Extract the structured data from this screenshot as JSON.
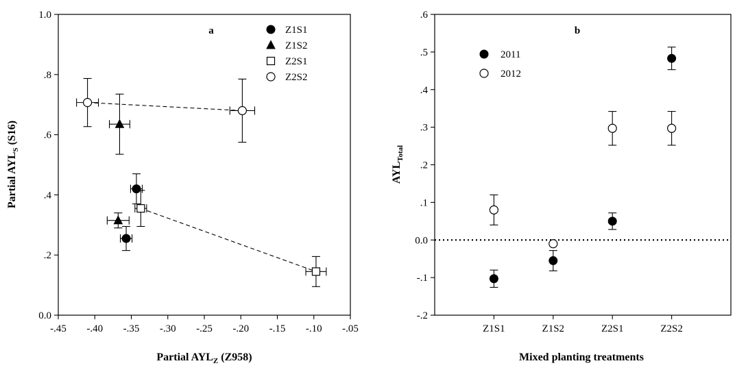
{
  "chart_data": [
    {
      "type": "scatter",
      "panel_label": "a",
      "xlabel": "Partial AYL",
      "xlabel_sub": "Z",
      "xlabel_suffix": " (Z958)",
      "ylabel": "Partial AYL",
      "ylabel_sub": "S",
      "ylabel_suffix": " (S16)",
      "xlim": [
        -0.45,
        -0.05
      ],
      "ylim": [
        0.0,
        1.0
      ],
      "x_ticks": [
        -0.45,
        -0.4,
        -0.35,
        -0.3,
        -0.25,
        -0.2,
        -0.15,
        -0.1,
        -0.05
      ],
      "x_tick_labels": [
        "-.45",
        "-.40",
        "-.35",
        "-.30",
        "-.25",
        "-.20",
        "-.15",
        "-.10",
        "-.05"
      ],
      "y_ticks": [
        0.0,
        0.2,
        0.4,
        0.6,
        0.8,
        1.0
      ],
      "y_tick_labels": [
        "0.0",
        ".2",
        ".4",
        ".6",
        ".8",
        "1.0"
      ],
      "grid": false,
      "legend_position": "top-right",
      "series": [
        {
          "name": "Z1S1",
          "marker": "filled-circle",
          "points": [
            {
              "x": -0.343,
              "y": 0.42,
              "xerr": 0.008,
              "yerr": 0.05
            },
            {
              "x": -0.357,
              "y": 0.255,
              "xerr": 0.008,
              "yerr": 0.04
            }
          ]
        },
        {
          "name": "Z1S2",
          "marker": "filled-triangle",
          "points": [
            {
              "x": -0.366,
              "y": 0.635,
              "xerr": 0.014,
              "yerr": 0.1
            },
            {
              "x": -0.368,
              "y": 0.315,
              "xerr": 0.015,
              "yerr": 0.025
            }
          ]
        },
        {
          "name": "Z2S1",
          "marker": "open-square",
          "points": [
            {
              "x": -0.337,
              "y": 0.355,
              "xerr": 0.008,
              "yerr": 0.06
            },
            {
              "x": -0.097,
              "y": 0.145,
              "xerr": 0.014,
              "yerr": 0.05
            }
          ]
        },
        {
          "name": "Z2S2",
          "marker": "open-circle",
          "points": [
            {
              "x": -0.41,
              "y": 0.707,
              "xerr": 0.015,
              "yerr": 0.08
            },
            {
              "x": -0.198,
              "y": 0.68,
              "xerr": 0.017,
              "yerr": 0.105
            }
          ]
        }
      ],
      "dashed_lines": [
        {
          "from": [
            -0.41,
            0.707
          ],
          "to": [
            -0.198,
            0.68
          ]
        },
        {
          "from": [
            -0.337,
            0.355
          ],
          "to": [
            -0.097,
            0.145
          ]
        }
      ]
    },
    {
      "type": "scatter",
      "panel_label": "b",
      "xlabel": "Mixed planting treatments",
      "ylabel": "AYL",
      "ylabel_sub": "Total",
      "categories": [
        "Z1S1",
        "Z1S2",
        "Z2S1",
        "Z2S2"
      ],
      "ylim": [
        -0.2,
        0.6
      ],
      "y_ticks": [
        -0.2,
        -0.1,
        0.0,
        0.1,
        0.2,
        0.3,
        0.4,
        0.5,
        0.6
      ],
      "y_tick_labels": [
        "-.2",
        "-.1",
        "0.0",
        ".1",
        ".2",
        ".3",
        ".4",
        ".5",
        ".6"
      ],
      "grid": false,
      "legend_position": "top-left",
      "reference_line": {
        "y": 0.0,
        "style": "dotted"
      },
      "series": [
        {
          "name": "2011",
          "marker": "filled-circle",
          "values": [
            -0.103,
            -0.055,
            0.05,
            0.483
          ],
          "errors": [
            0.023,
            0.027,
            0.022,
            0.03
          ]
        },
        {
          "name": "2012",
          "marker": "open-circle",
          "values": [
            0.08,
            -0.01,
            0.297,
            0.297
          ],
          "errors": [
            0.04,
            0.0,
            0.045,
            0.045
          ]
        }
      ]
    }
  ]
}
